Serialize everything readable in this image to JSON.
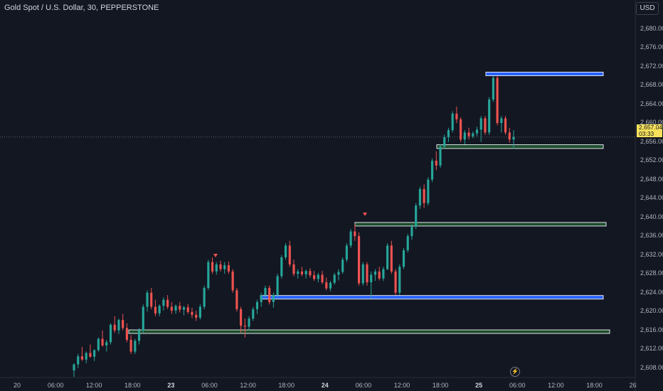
{
  "header": {
    "title": "Gold Spot / U.S. Dollar, 30, PEPPERSTONE",
    "currency": "USD"
  },
  "price_tag": {
    "price": "2,657.04",
    "countdown": "03:33"
  },
  "colors": {
    "up": "#26a69a",
    "down": "#ef5350",
    "blue_zone": "#2962ff",
    "green_zone": "#1e4d2b",
    "background": "#131722"
  },
  "icons": {
    "flash": "lightning-icon"
  },
  "chart_data": {
    "type": "candlestick",
    "title": "Gold Spot / U.S. Dollar, 30, PEPPERSTONE",
    "ylim": [
      2606,
      2684
    ],
    "y_ticks": [
      "2,680.00",
      "2,676.00",
      "2,672.00",
      "2,668.00",
      "2,664.00",
      "2,660.00",
      "2,656.00",
      "2,652.00",
      "2,648.00",
      "2,644.00",
      "2,640.00",
      "2,636.00",
      "2,632.00",
      "2,628.00",
      "2,624.00",
      "2,620.00",
      "2,616.00",
      "2,612.00",
      "2,608.00"
    ],
    "x_ticks": [
      "20",
      "06:00",
      "12:00",
      "18:00",
      "23",
      "06:00",
      "12:00",
      "18:00",
      "24",
      "06:00",
      "12:00",
      "18:00",
      "25",
      "06:00",
      "12:00",
      "18:00",
      "26"
    ],
    "bold_days": [
      "23",
      "24",
      "25"
    ],
    "zones": [
      {
        "kind": "blue",
        "top": 2670.8,
        "bottom": 2670.1
      },
      {
        "kind": "green",
        "top": 2655.4,
        "bottom": 2654.6
      },
      {
        "kind": "green",
        "top": 2638.9,
        "bottom": 2638.2
      },
      {
        "kind": "blue",
        "top": 2623.4,
        "bottom": 2622.7
      },
      {
        "kind": "green",
        "top": 2616.1,
        "bottom": 2615.4
      }
    ],
    "last_price": 2657.04,
    "candles": [
      [
        2607.5,
        2609,
        2606,
        2608.8
      ],
      [
        2608.8,
        2611,
        2608,
        2610.5
      ],
      [
        2610.5,
        2612.5,
        2609.5,
        2609.8
      ],
      [
        2609.8,
        2611.5,
        2609,
        2611.2
      ],
      [
        2611.2,
        2613,
        2610.2,
        2610.4
      ],
      [
        2610.4,
        2612,
        2609.5,
        2611.8
      ],
      [
        2611.8,
        2614.5,
        2611.5,
        2614.2
      ],
      [
        2614.2,
        2616,
        2612.5,
        2612.8
      ],
      [
        2612.8,
        2614,
        2611.5,
        2613.5
      ],
      [
        2613.5,
        2617.5,
        2613,
        2617.2
      ],
      [
        2617.2,
        2619,
        2615.5,
        2616
      ],
      [
        2616,
        2618.5,
        2615.2,
        2618.2
      ],
      [
        2618.2,
        2619.5,
        2616,
        2616.5
      ],
      [
        2616.5,
        2617.5,
        2613.5,
        2614
      ],
      [
        2614,
        2615,
        2611,
        2611.5
      ],
      [
        2611.5,
        2614.2,
        2611,
        2613.8
      ],
      [
        2613.8,
        2616.5,
        2613,
        2616
      ],
      [
        2616,
        2621.5,
        2615.5,
        2621
      ],
      [
        2621,
        2624.5,
        2620,
        2624
      ],
      [
        2624,
        2625,
        2620.5,
        2621
      ],
      [
        2621,
        2622.5,
        2619,
        2619.6
      ],
      [
        2619.6,
        2621.5,
        2619,
        2621.2
      ],
      [
        2621.2,
        2623,
        2620.2,
        2622.5
      ],
      [
        2622.5,
        2623.5,
        2620.5,
        2621
      ],
      [
        2621,
        2622,
        2619.5,
        2620.2
      ],
      [
        2620.2,
        2621.5,
        2619.5,
        2621.2
      ],
      [
        2621.2,
        2622,
        2619.8,
        2620.4
      ],
      [
        2620.4,
        2621.2,
        2619.2,
        2620.9
      ],
      [
        2620.9,
        2621.6,
        2619.5,
        2619.9
      ],
      [
        2619.9,
        2620.8,
        2618.6,
        2619.3
      ],
      [
        2619.3,
        2620.2,
        2618,
        2618.7
      ],
      [
        2618.7,
        2621.5,
        2618.3,
        2621
      ],
      [
        2621,
        2625.5,
        2620.5,
        2625
      ],
      [
        2625,
        2631,
        2624.6,
        2630.5
      ],
      [
        2630.5,
        2631.5,
        2628,
        2628.5
      ],
      [
        2628.5,
        2630.5,
        2627.8,
        2630
      ],
      [
        2630,
        2630.8,
        2628.5,
        2629
      ],
      [
        2629,
        2630.5,
        2628,
        2629.8
      ],
      [
        2629.8,
        2630.6,
        2628,
        2628.5
      ],
      [
        2628.5,
        2629,
        2624,
        2624.5
      ],
      [
        2624.5,
        2625,
        2620,
        2620.5
      ],
      [
        2620.5,
        2621,
        2615.5,
        2617
      ],
      [
        2617,
        2618.5,
        2614.5,
        2616.8
      ],
      [
        2616.8,
        2619,
        2616,
        2618.5
      ],
      [
        2618.5,
        2621,
        2618,
        2620.5
      ],
      [
        2620.5,
        2622.5,
        2619.5,
        2622
      ],
      [
        2622,
        2624,
        2621,
        2623.5
      ],
      [
        2623.5,
        2625.5,
        2623,
        2625
      ],
      [
        2625,
        2625.5,
        2621.5,
        2622
      ],
      [
        2622,
        2624,
        2620.8,
        2623.5
      ],
      [
        2623.5,
        2628,
        2623,
        2627.5
      ],
      [
        2627.5,
        2632,
        2627,
        2631.5
      ],
      [
        2631.5,
        2634.5,
        2631,
        2634
      ],
      [
        2634,
        2635,
        2629.5,
        2630
      ],
      [
        2630,
        2631,
        2627.5,
        2628
      ],
      [
        2628,
        2629,
        2627,
        2628.5
      ],
      [
        2628.5,
        2629.5,
        2627.5,
        2627.9
      ],
      [
        2627.9,
        2628.9,
        2627,
        2628.6
      ],
      [
        2628.6,
        2629.2,
        2627.2,
        2627.7
      ],
      [
        2627.7,
        2628.6,
        2626.5,
        2626.9
      ],
      [
        2626.9,
        2628.2,
        2626.2,
        2627.8
      ],
      [
        2627.8,
        2628.6,
        2625.8,
        2626.2
      ],
      [
        2626.2,
        2627.2,
        2624.5,
        2624.9
      ],
      [
        2624.9,
        2626.5,
        2624.3,
        2626.1
      ],
      [
        2626.1,
        2628.2,
        2625.7,
        2627.8
      ],
      [
        2627.8,
        2629,
        2626.6,
        2628.4
      ],
      [
        2628.4,
        2631.5,
        2628,
        2631
      ],
      [
        2631,
        2634.5,
        2630.5,
        2634
      ],
      [
        2634,
        2637.5,
        2633.5,
        2637
      ],
      [
        2637,
        2638.5,
        2635,
        2636
      ],
      [
        2636,
        2636.8,
        2625.5,
        2626
      ],
      [
        2626,
        2630.5,
        2625.5,
        2630
      ],
      [
        2630,
        2630.5,
        2625.5,
        2626.2
      ],
      [
        2626.2,
        2628.5,
        2622.8,
        2627.8
      ],
      [
        2627.8,
        2629,
        2626.5,
        2628.5
      ],
      [
        2628.5,
        2629.5,
        2626.6,
        2627
      ],
      [
        2627,
        2629.5,
        2626.5,
        2629
      ],
      [
        2629,
        2634.5,
        2628.8,
        2634
      ],
      [
        2634,
        2635,
        2628,
        2628.5
      ],
      [
        2628.5,
        2629,
        2623.5,
        2624
      ],
      [
        2624,
        2630,
        2623.5,
        2629.5
      ],
      [
        2629.5,
        2633.5,
        2629,
        2633
      ],
      [
        2633,
        2636.5,
        2632.5,
        2636
      ],
      [
        2636,
        2638.5,
        2635.2,
        2638
      ],
      [
        2638,
        2643,
        2637.5,
        2642.5
      ],
      [
        2642.5,
        2646.5,
        2641.8,
        2646
      ],
      [
        2646,
        2647,
        2642,
        2643
      ],
      [
        2643,
        2648.5,
        2642.5,
        2648
      ],
      [
        2648,
        2652.5,
        2647.5,
        2652
      ],
      [
        2652,
        2654,
        2650,
        2651
      ],
      [
        2651,
        2655.5,
        2650.5,
        2655
      ],
      [
        2655,
        2657.5,
        2654.5,
        2657
      ],
      [
        2657,
        2659,
        2656,
        2658.5
      ],
      [
        2658.5,
        2662.5,
        2658,
        2662
      ],
      [
        2662,
        2663.5,
        2660,
        2660.8
      ],
      [
        2660.8,
        2661.2,
        2656,
        2656.5
      ],
      [
        2656.5,
        2658.5,
        2655.5,
        2658
      ],
      [
        2658,
        2659,
        2656.5,
        2657.2
      ],
      [
        2657.2,
        2658.2,
        2656.8,
        2657.8
      ],
      [
        2657.8,
        2659.2,
        2657.2,
        2658.6
      ],
      [
        2658.6,
        2661.5,
        2656,
        2661
      ],
      [
        2661,
        2661.5,
        2657.5,
        2658
      ],
      [
        2658,
        2665.5,
        2657.5,
        2665
      ],
      [
        2665,
        2670,
        2664.5,
        2669.6
      ],
      [
        2669.6,
        2670,
        2659.5,
        2660
      ],
      [
        2660,
        2661.5,
        2658,
        2661
      ],
      [
        2661,
        2661.5,
        2657.5,
        2658
      ],
      [
        2658,
        2659,
        2655.8,
        2656.5
      ],
      [
        2656.5,
        2658.5,
        2654.5,
        2657.04
      ]
    ]
  }
}
